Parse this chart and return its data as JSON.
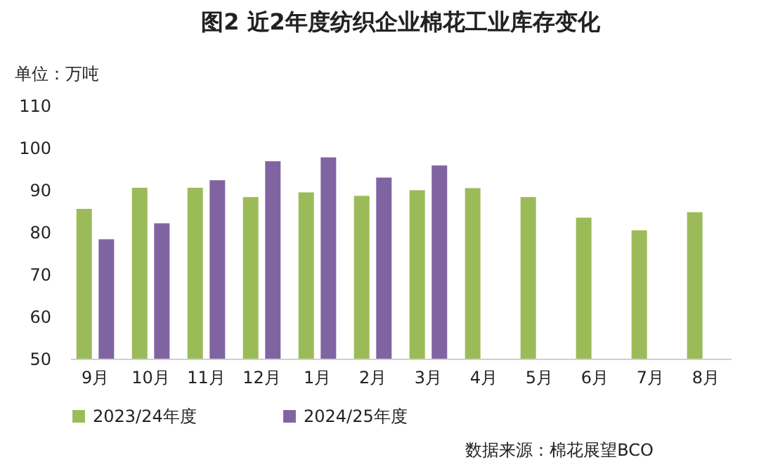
{
  "chart_data": {
    "type": "bar",
    "title": "图2  近2年度纺织企业棉花工业库存变化",
    "ylabel": "单位：万吨",
    "categories": [
      "9月",
      "10月",
      "11月",
      "12月",
      "1月",
      "2月",
      "3月",
      "4月",
      "5月",
      "6月",
      "7月",
      "8月"
    ],
    "series": [
      {
        "name": "2023/24年度",
        "color": "#9bbb59",
        "values": [
          85.5,
          90.5,
          90.5,
          88.3,
          89.4,
          88.6,
          89.9,
          90.4,
          88.3,
          83.4,
          80.4,
          84.7
        ]
      },
      {
        "name": "2024/25年度",
        "color": "#8064a2",
        "values": [
          78.3,
          82.1,
          92.3,
          96.8,
          97.7,
          92.9,
          95.8,
          null,
          null,
          null,
          null,
          null
        ]
      }
    ],
    "ylim": [
      50,
      110
    ],
    "yticks": [
      50,
      60,
      70,
      80,
      90,
      100,
      110
    ],
    "grid": false,
    "legend": "bottom",
    "annotations": [
      "数据来源：棉花展望BCO"
    ]
  }
}
